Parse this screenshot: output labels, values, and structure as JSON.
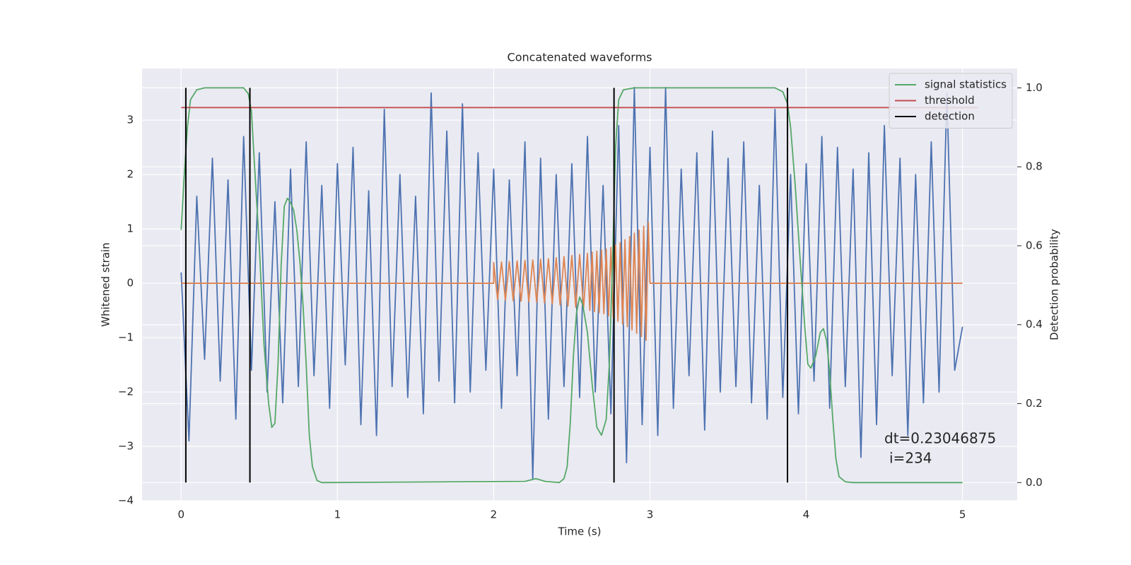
{
  "chart_data": {
    "type": "line",
    "title": "Concatenated waveforms",
    "xlabel": "Time (s)",
    "ylabel": "Whitened strain",
    "y2label": "Detection probability",
    "xlim": [
      -0.25,
      5.35
    ],
    "ylim": [
      -4.0,
      3.95
    ],
    "y2lim": [
      -0.046,
      1.049
    ],
    "xticks": [
      0,
      1,
      2,
      3,
      4,
      5
    ],
    "yticks": [
      {
        "value": -4,
        "label": "−4"
      },
      {
        "value": -3,
        "label": "−3"
      },
      {
        "value": -2,
        "label": "−2"
      },
      {
        "value": -1,
        "label": "−1"
      },
      0,
      1,
      2,
      3
    ],
    "y2ticks": [
      {
        "value": 0,
        "label": "0.0"
      },
      0.2,
      0.4,
      0.6,
      0.8,
      {
        "value": 1,
        "label": "1.0"
      }
    ],
    "grid": true,
    "legend": "upper right",
    "annotation": [
      "dt=0.23046875",
      "i=234"
    ],
    "series": [
      {
        "color": "#4c72b0",
        "x": [
          0,
          0.05,
          0.1,
          0.15,
          0.2,
          0.25,
          0.3,
          0.35,
          0.4,
          0.45,
          0.5,
          0.55,
          0.6,
          0.65,
          0.7,
          0.75,
          0.8,
          0.85,
          0.9,
          0.95,
          1.0,
          1.05,
          1.1,
          1.15,
          1.2,
          1.25,
          1.3,
          1.35,
          1.4,
          1.45,
          1.5,
          1.55,
          1.6,
          1.65,
          1.7,
          1.75,
          1.8,
          1.85,
          1.9,
          1.95,
          2.0,
          2.05,
          2.1,
          2.15,
          2.2,
          2.25,
          2.3,
          2.35,
          2.4,
          2.45,
          2.5,
          2.55,
          2.6,
          2.65,
          2.7,
          2.75,
          2.8,
          2.85,
          2.9,
          2.95,
          3.0,
          3.05,
          3.1,
          3.15,
          3.2,
          3.25,
          3.3,
          3.35,
          3.4,
          3.45,
          3.5,
          3.55,
          3.6,
          3.65,
          3.7,
          3.75,
          3.8,
          3.85,
          3.9,
          3.95,
          4.0,
          4.05,
          4.1,
          4.15,
          4.2,
          4.25,
          4.3,
          4.35,
          4.4,
          4.45,
          4.5,
          4.55,
          4.6,
          4.65,
          4.7,
          4.75,
          4.8,
          4.85,
          4.9,
          4.95,
          5.0
        ],
        "values": [
          0.2,
          -2.9,
          1.6,
          -1.4,
          2.3,
          -1.8,
          1.9,
          -2.5,
          2.7,
          -1.6,
          2.4,
          -2.0,
          1.5,
          -2.2,
          2.1,
          -1.9,
          2.6,
          -1.7,
          1.8,
          -2.3,
          2.2,
          -1.5,
          2.5,
          -2.6,
          1.7,
          -2.8,
          3.2,
          -1.9,
          2.0,
          -2.1,
          1.6,
          -2.4,
          3.5,
          -1.8,
          2.8,
          -2.2,
          3.3,
          -2.0,
          2.4,
          -1.6,
          2.1,
          -2.3,
          1.9,
          -1.7,
          2.6,
          -3.6,
          2.3,
          -2.5,
          2.0,
          -1.9,
          2.2,
          -2.1,
          2.7,
          -2.0,
          1.8,
          -2.4,
          2.9,
          -3.3,
          3.6,
          -2.6,
          2.5,
          -2.8,
          3.6,
          -2.3,
          2.1,
          -1.7,
          2.4,
          -2.7,
          2.8,
          -2.0,
          2.3,
          -1.9,
          2.6,
          -2.2,
          1.8,
          -2.5,
          3.2,
          -2.1,
          2.0,
          -2.4,
          2.2,
          -1.8,
          2.7,
          -2.3,
          2.5,
          -1.9,
          2.1,
          -3.2,
          2.4,
          -2.6,
          2.9,
          -1.7,
          2.3,
          -2.8,
          2.0,
          -2.2,
          2.6,
          -2.0,
          3.5,
          -1.6,
          -0.8
        ]
      },
      {
        "color": "#dd8452",
        "x": [
          0,
          2.0,
          2.0,
          2.025,
          2.05,
          2.075,
          2.1,
          2.125,
          2.15,
          2.175,
          2.2,
          2.225,
          2.25,
          2.275,
          2.3,
          2.325,
          2.35,
          2.375,
          2.4,
          2.425,
          2.45,
          2.475,
          2.5,
          2.525,
          2.55,
          2.575,
          2.6,
          2.615,
          2.63,
          2.645,
          2.66,
          2.675,
          2.69,
          2.705,
          2.72,
          2.735,
          2.75,
          2.765,
          2.78,
          2.795,
          2.81,
          2.825,
          2.84,
          2.855,
          2.87,
          2.885,
          2.9,
          2.915,
          2.93,
          2.945,
          2.96,
          2.975,
          2.99,
          3.0,
          5.0
        ],
        "values": [
          0,
          0,
          0.38,
          -0.3,
          0.39,
          -0.31,
          0.4,
          -0.32,
          0.41,
          -0.33,
          0.42,
          -0.34,
          0.43,
          -0.35,
          0.44,
          -0.36,
          0.45,
          -0.38,
          0.47,
          -0.4,
          0.49,
          -0.42,
          0.51,
          -0.44,
          0.53,
          -0.46,
          0.55,
          -0.5,
          0.57,
          -0.52,
          0.59,
          -0.54,
          0.61,
          -0.56,
          0.63,
          -0.6,
          0.66,
          -0.64,
          0.7,
          -0.7,
          0.75,
          -0.75,
          0.8,
          -0.8,
          0.86,
          -0.86,
          0.92,
          -0.92,
          0.98,
          -0.98,
          1.05,
          -1.05,
          1.12,
          0,
          0
        ]
      },
      {
        "name": "signal statistics",
        "color": "#55a868",
        "axis": "y2",
        "x": [
          0,
          0.02,
          0.04,
          0.06,
          0.1,
          0.15,
          0.4,
          0.43,
          0.45,
          0.47,
          0.5,
          0.53,
          0.56,
          0.58,
          0.6,
          0.62,
          0.64,
          0.66,
          0.68,
          0.7,
          0.72,
          0.74,
          0.76,
          0.78,
          0.8,
          0.82,
          0.84,
          0.87,
          0.9,
          2.2,
          2.27,
          2.33,
          2.42,
          2.45,
          2.47,
          2.49,
          2.51,
          2.53,
          2.55,
          2.57,
          2.6,
          2.63,
          2.66,
          2.69,
          2.72,
          2.74,
          2.76,
          2.78,
          2.8,
          2.83,
          2.9,
          3.8,
          3.85,
          3.88,
          3.9,
          3.93,
          3.96,
          3.99,
          4.01,
          4.03,
          4.06,
          4.09,
          4.11,
          4.13,
          4.15,
          4.17,
          4.19,
          4.21,
          4.25,
          4.3,
          5.0
        ],
        "values": [
          0.64,
          0.78,
          0.9,
          0.97,
          0.995,
          1.0,
          1.0,
          0.985,
          0.94,
          0.8,
          0.6,
          0.35,
          0.2,
          0.14,
          0.15,
          0.3,
          0.55,
          0.7,
          0.72,
          0.71,
          0.69,
          0.64,
          0.56,
          0.45,
          0.3,
          0.12,
          0.04,
          0.005,
          0.0,
          0.003,
          0.01,
          0.003,
          0.0,
          0.01,
          0.04,
          0.15,
          0.32,
          0.43,
          0.47,
          0.45,
          0.38,
          0.25,
          0.14,
          0.12,
          0.16,
          0.3,
          0.55,
          0.85,
          0.97,
          0.995,
          1.0,
          1.0,
          0.99,
          0.96,
          0.9,
          0.75,
          0.57,
          0.4,
          0.3,
          0.29,
          0.32,
          0.38,
          0.39,
          0.36,
          0.28,
          0.16,
          0.06,
          0.015,
          0.002,
          0.0,
          0.0
        ]
      },
      {
        "name": "threshold",
        "color": "#c44e52",
        "axis": "y2",
        "x": [
          0,
          5.1
        ],
        "values": [
          0.95,
          0.95
        ]
      }
    ],
    "detection": {
      "name": "detection",
      "color": "#000000",
      "axis": "y2",
      "x": [
        0.03,
        0.44,
        2.77,
        3.88
      ],
      "ymin": 0,
      "ymax": 1
    }
  }
}
